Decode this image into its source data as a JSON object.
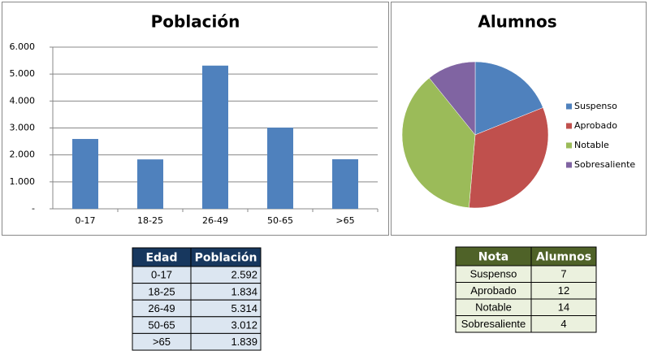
{
  "chart_data": [
    {
      "type": "bar",
      "title": "Población",
      "categories": [
        "0-17",
        "18-25",
        "26-49",
        "50-65",
        ">65"
      ],
      "values": [
        2592,
        1834,
        5314,
        3012,
        1839
      ],
      "color": "#4f81bd",
      "ylim": [
        0,
        6000
      ],
      "yticks": [
        {
          "value": 0,
          "label": "-"
        },
        {
          "value": 1000,
          "label": "1.000"
        },
        {
          "value": 2000,
          "label": "2.000"
        },
        {
          "value": 3000,
          "label": "3.000"
        },
        {
          "value": 4000,
          "label": "4.000"
        },
        {
          "value": 5000,
          "label": "5.000"
        },
        {
          "value": 6000,
          "label": "6.000"
        }
      ],
      "grid": true
    },
    {
      "type": "pie",
      "title": "Alumnos",
      "categories": [
        "Suspenso",
        "Aprobado",
        "Notable",
        "Sobresaliente"
      ],
      "values": [
        7,
        12,
        14,
        4
      ],
      "colors": [
        "#4f81bd",
        "#c0504d",
        "#9bbb59",
        "#8064a2"
      ],
      "legend": "right"
    }
  ],
  "tables": [
    {
      "header": [
        "Edad",
        "Población"
      ],
      "rows": [
        [
          "0-17",
          "2.592"
        ],
        [
          "18-25",
          "1.834"
        ],
        [
          "26-49",
          "5.314"
        ],
        [
          "50-65",
          "3.012"
        ],
        [
          ">65",
          "1.839"
        ]
      ]
    },
    {
      "header": [
        "Nota",
        "Alumnos"
      ],
      "rows": [
        [
          "Suspenso",
          "7"
        ],
        [
          "Aprobado",
          "12"
        ],
        [
          "Notable",
          "14"
        ],
        [
          "Sobresaliente",
          "4"
        ]
      ]
    }
  ]
}
